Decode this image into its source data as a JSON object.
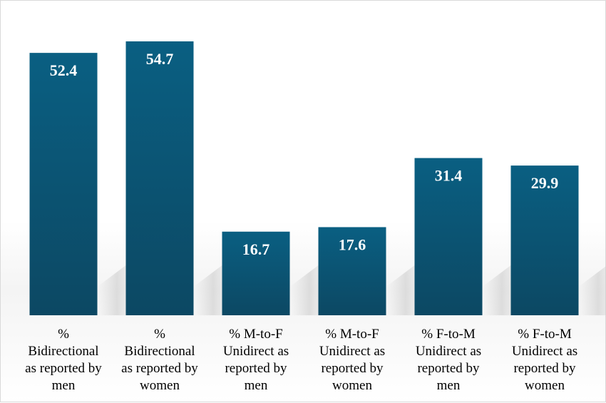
{
  "chart_data": {
    "type": "bar",
    "categories": [
      "% Bidirectional as reported by men",
      "% Bidirectional as reported by women",
      "% M-to-F Unidirect as reported by men",
      "% M-to-F Unidirect as reported by women",
      "% F-to-M Unidirect as reported by men",
      "% F-to-M Unidirect as reported by women"
    ],
    "category_lines": [
      [
        "%",
        "Bidirectional",
        "as reported by",
        "men"
      ],
      [
        "%",
        "Bidirectional",
        "as reported by",
        "women"
      ],
      [
        "% M-to-F",
        "Unidirect as",
        "reported by",
        "men"
      ],
      [
        "% M-to-F",
        "Unidirect as",
        "reported by",
        "women"
      ],
      [
        "% F-to-M",
        "Unidirect as",
        "reported by",
        "men"
      ],
      [
        "% F-to-M",
        "Unidirect as",
        "reported by",
        "women"
      ]
    ],
    "values": [
      52.4,
      54.7,
      16.7,
      17.6,
      31.4,
      29.9
    ],
    "value_labels": [
      "52.4",
      "54.7",
      "16.7",
      "17.6",
      "31.4",
      "29.9"
    ],
    "title": "",
    "xlabel": "",
    "ylabel": "",
    "ylim": [
      0,
      54.7
    ],
    "grid": false,
    "legend": "none",
    "colors": {
      "bar_top": "#0a5f82",
      "bar_bottom": "#0c4863",
      "value_text": "#ffffff",
      "category_text": "#000000"
    }
  }
}
